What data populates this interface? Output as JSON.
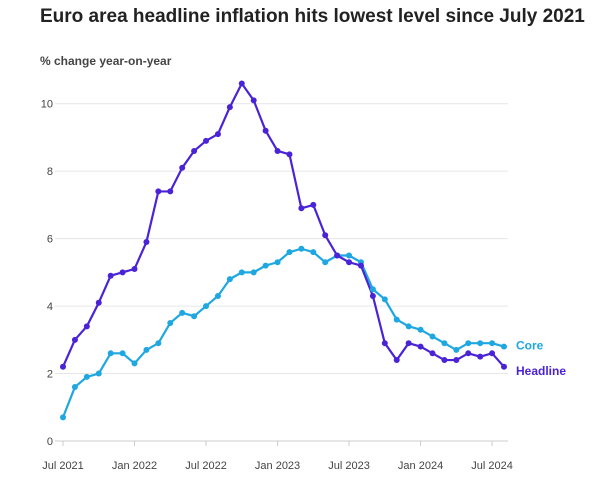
{
  "title": "Euro area headline inflation hits lowest level since July 2021",
  "colors": {
    "headline": "#4a23d6",
    "core": "#1ea7e1",
    "grid": "#e6e6e6",
    "axis": "#cccccc"
  },
  "chart_data": {
    "type": "line",
    "title": "Euro area headline inflation hits lowest level since July 2021",
    "ylabel": "% change year-on-year",
    "xlabel": "",
    "ylim": [
      0,
      11
    ],
    "yticks": [
      0,
      2,
      4,
      6,
      8,
      10
    ],
    "xticks": [
      "Jul 2021",
      "Jan 2022",
      "Jul 2022",
      "Jan 2023",
      "Jul 2023",
      "Jan 2024",
      "Jul 2024"
    ],
    "xticks_index": [
      0,
      6,
      12,
      18,
      24,
      30,
      36
    ],
    "grid": "horizontal",
    "x": [
      "2021-07",
      "2021-08",
      "2021-09",
      "2021-10",
      "2021-11",
      "2021-12",
      "2022-01",
      "2022-02",
      "2022-03",
      "2022-04",
      "2022-05",
      "2022-06",
      "2022-07",
      "2022-08",
      "2022-09",
      "2022-10",
      "2022-11",
      "2022-12",
      "2023-01",
      "2023-02",
      "2023-03",
      "2023-04",
      "2023-05",
      "2023-06",
      "2023-07",
      "2023-08",
      "2023-09",
      "2023-10",
      "2023-11",
      "2023-12",
      "2024-01",
      "2024-02",
      "2024-03",
      "2024-04",
      "2024-05",
      "2024-06",
      "2024-07",
      "2024-08"
    ],
    "series": [
      {
        "name": "Headline",
        "color": "#4a23d6",
        "values": [
          2.2,
          3.0,
          3.4,
          4.1,
          4.9,
          5.0,
          5.1,
          5.9,
          7.4,
          7.4,
          8.1,
          8.6,
          8.9,
          9.1,
          9.9,
          10.6,
          10.1,
          9.2,
          8.6,
          8.5,
          6.9,
          7.0,
          6.1,
          5.5,
          5.3,
          5.2,
          4.3,
          2.9,
          2.4,
          2.9,
          2.8,
          2.6,
          2.4,
          2.4,
          2.6,
          2.5,
          2.6,
          2.2
        ]
      },
      {
        "name": "Core",
        "color": "#1ea7e1",
        "values": [
          0.7,
          1.6,
          1.9,
          2.0,
          2.6,
          2.6,
          2.3,
          2.7,
          2.9,
          3.5,
          3.8,
          3.7,
          4.0,
          4.3,
          4.8,
          5.0,
          5.0,
          5.2,
          5.3,
          5.6,
          5.7,
          5.6,
          5.3,
          5.5,
          5.5,
          5.3,
          4.5,
          4.2,
          3.6,
          3.4,
          3.3,
          3.1,
          2.9,
          2.7,
          2.9,
          2.9,
          2.9,
          2.8
        ]
      }
    ]
  }
}
